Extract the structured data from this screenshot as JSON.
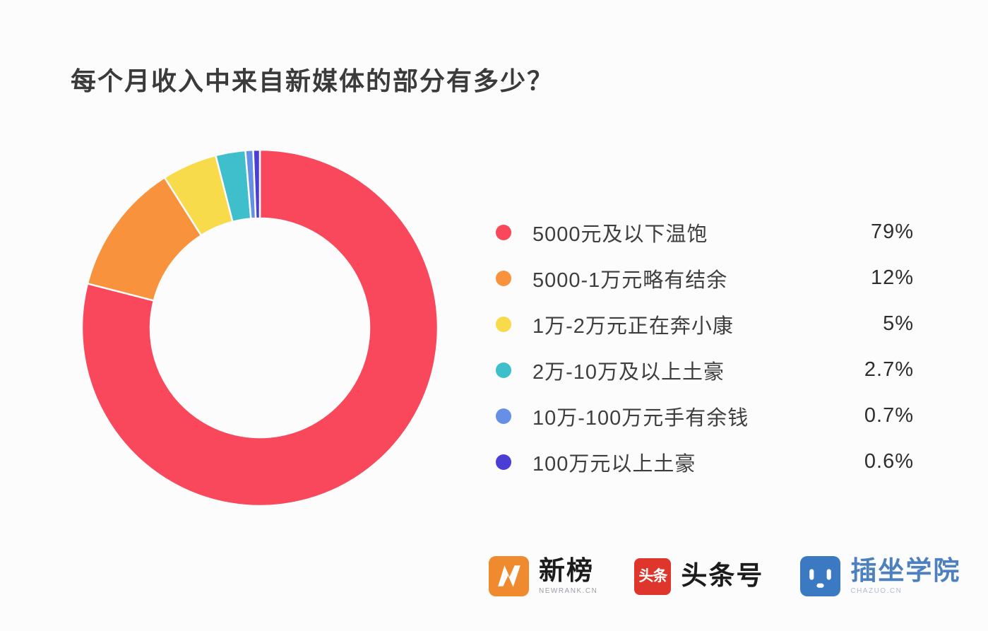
{
  "title": "每个月收入中来自新媒体的部分有多少？",
  "chart_data": {
    "type": "pie",
    "subtype": "donut",
    "title": "每个月收入中来自新媒体的部分有多少？",
    "start_angle_deg": 0,
    "direction": "clockwise",
    "inner_radius_ratio": 0.615,
    "legend_position": "right",
    "background_color": "#FCFCFC",
    "series": [
      {
        "label": "5000元及以下温饱",
        "value": 79,
        "display": "79%",
        "color": "#F9485B"
      },
      {
        "label": "5000-1万元略有结余",
        "value": 12,
        "display": "12%",
        "color": "#F8923C"
      },
      {
        "label": "1万-2万元正在奔小康",
        "value": 5,
        "display": "5%",
        "color": "#F8DB4A"
      },
      {
        "label": "2万-10万及以上土豪",
        "value": 2.7,
        "display": "2.7%",
        "color": "#3FBECB"
      },
      {
        "label": "10万-100万元手有余钱",
        "value": 0.7,
        "display": "0.7%",
        "color": "#6590E5"
      },
      {
        "label": "100万元以上土豪",
        "value": 0.6,
        "display": "0.6%",
        "color": "#4A3ED5"
      }
    ]
  },
  "footer": {
    "logos": [
      {
        "name": "新榜",
        "subtext": "NEWRANK.CN",
        "icon": "newrank-logo",
        "icon_color": "#F08A2E",
        "text_color": "#1c1c1c"
      },
      {
        "name": "头条号",
        "icon_text": "头条",
        "icon": "toutiao-logo",
        "icon_color": "#DE352C",
        "text_color": "#333333"
      },
      {
        "name": "插坐学院",
        "subtext": "CHAZUO.CN",
        "icon": "chazuo-logo",
        "icon_color": "#3B7AC2",
        "text_color": "#4D80BE"
      }
    ]
  }
}
